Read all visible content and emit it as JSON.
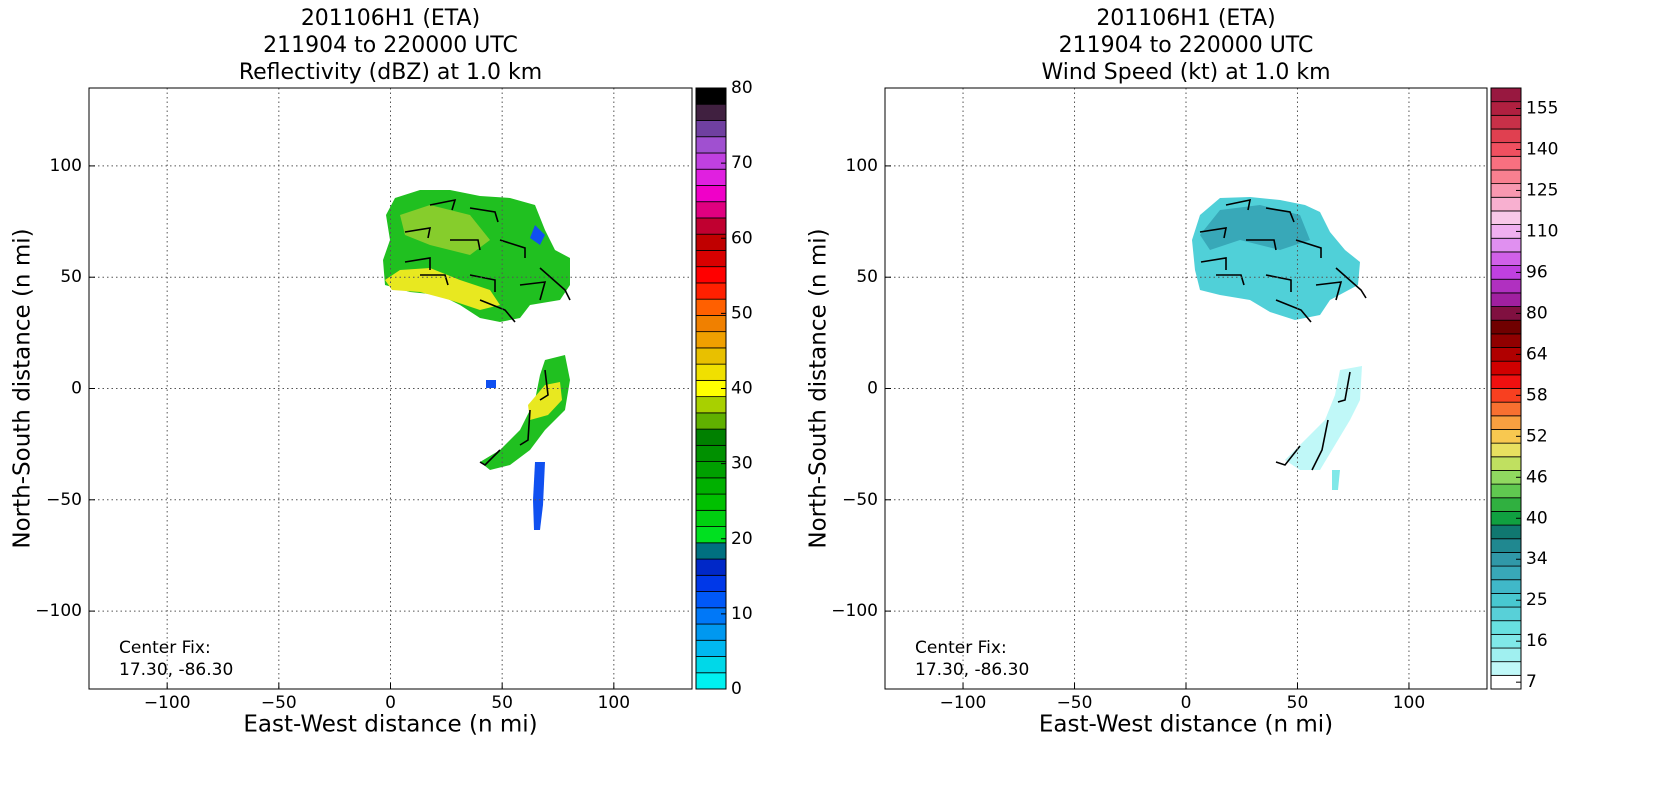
{
  "chart_data": [
    {
      "type": "radar-field",
      "title": [
        "201106H1 (ETA)",
        "211904 to 220000 UTC",
        "Reflectivity (dBZ) at 1.0 km"
      ],
      "x_label": "East-West distance (n mi)",
      "y_label": "North-South distance (n mi)",
      "xlim": [
        -135,
        135
      ],
      "ylim": [
        -135,
        135
      ],
      "xticks": [
        {
          "value": -100,
          "label": "−100"
        },
        {
          "value": -50,
          "label": "−50"
        },
        0,
        50,
        100
      ],
      "yticks": [
        {
          "value": -100,
          "label": "−100"
        },
        {
          "value": -50,
          "label": "−50"
        },
        0,
        50,
        100
      ],
      "grid": true,
      "annotation": [
        "Center Fix:",
        "17.30, -86.30"
      ],
      "colorbar": {
        "scale": "linear",
        "clim": [
          0,
          80
        ],
        "ticks": [
          0,
          10,
          20,
          30,
          40,
          50,
          60,
          70,
          80
        ],
        "colors": [
          "#00f0f0",
          "#00d8e8",
          "#00b8f0",
          "#0098f0",
          "#0078f8",
          "#0058f8",
          "#0038e8",
          "#0028c8",
          "#007080",
          "#00e020",
          "#00d010",
          "#00c000",
          "#00b000",
          "#00a000",
          "#009000",
          "#008000",
          "#60b000",
          "#a8d000",
          "#ffff00",
          "#f0e000",
          "#e8c000",
          "#f0a000",
          "#f08000",
          "#ff6000",
          "#ff2000",
          "#ff0000",
          "#d80000",
          "#c00000",
          "#c00030",
          "#e00080",
          "#f000c8",
          "#e020e0",
          "#c040e0",
          "#a050d0",
          "#7040a0",
          "#402040",
          "#000000"
        ]
      }
    },
    {
      "type": "radar-field",
      "title": [
        "201106H1 (ETA)",
        "211904 to 220000 UTC",
        "Wind Speed (kt) at 1.0 km"
      ],
      "x_label": "East-West distance (n mi)",
      "y_label": "North-South distance (n mi)",
      "xlim": [
        -135,
        135
      ],
      "ylim": [
        -135,
        135
      ],
      "xticks": [
        {
          "value": -100,
          "label": "−100"
        },
        {
          "value": -50,
          "label": "−50"
        },
        0,
        50,
        100
      ],
      "yticks": [
        {
          "value": -100,
          "label": "−100"
        },
        {
          "value": -50,
          "label": "−50"
        },
        0,
        50,
        100
      ],
      "grid": true,
      "annotation": [
        "Center Fix:",
        "17.30, -86.30"
      ],
      "colorbar": {
        "scale": "ordinal",
        "ticks": [
          7,
          16,
          25,
          34,
          40,
          46,
          52,
          58,
          64,
          80,
          96,
          110,
          125,
          140,
          155
        ],
        "colors": [
          "#ffffff",
          "#c0f8f8",
          "#a0f0f0",
          "#80e8e8",
          "#68e0e0",
          "#58d0d8",
          "#48c8d0",
          "#40b8c8",
          "#38a8b8",
          "#3098a8",
          "#208890",
          "#107870",
          "#10a040",
          "#30b040",
          "#60c850",
          "#90d860",
          "#c0e060",
          "#e8e060",
          "#f8c850",
          "#f8a040",
          "#f87030",
          "#f84020",
          "#f01010",
          "#d00000",
          "#b00000",
          "#900000",
          "#700000",
          "#801040",
          "#a020a0",
          "#b030c0",
          "#c040e0",
          "#d060e8",
          "#e090f0",
          "#f0b0f0",
          "#f8c8e8",
          "#f8b0d0",
          "#f898b0",
          "#f88090",
          "#f87080",
          "#f05060",
          "#e04050",
          "#c83048",
          "#b02040",
          "#981840"
        ]
      }
    }
  ]
}
